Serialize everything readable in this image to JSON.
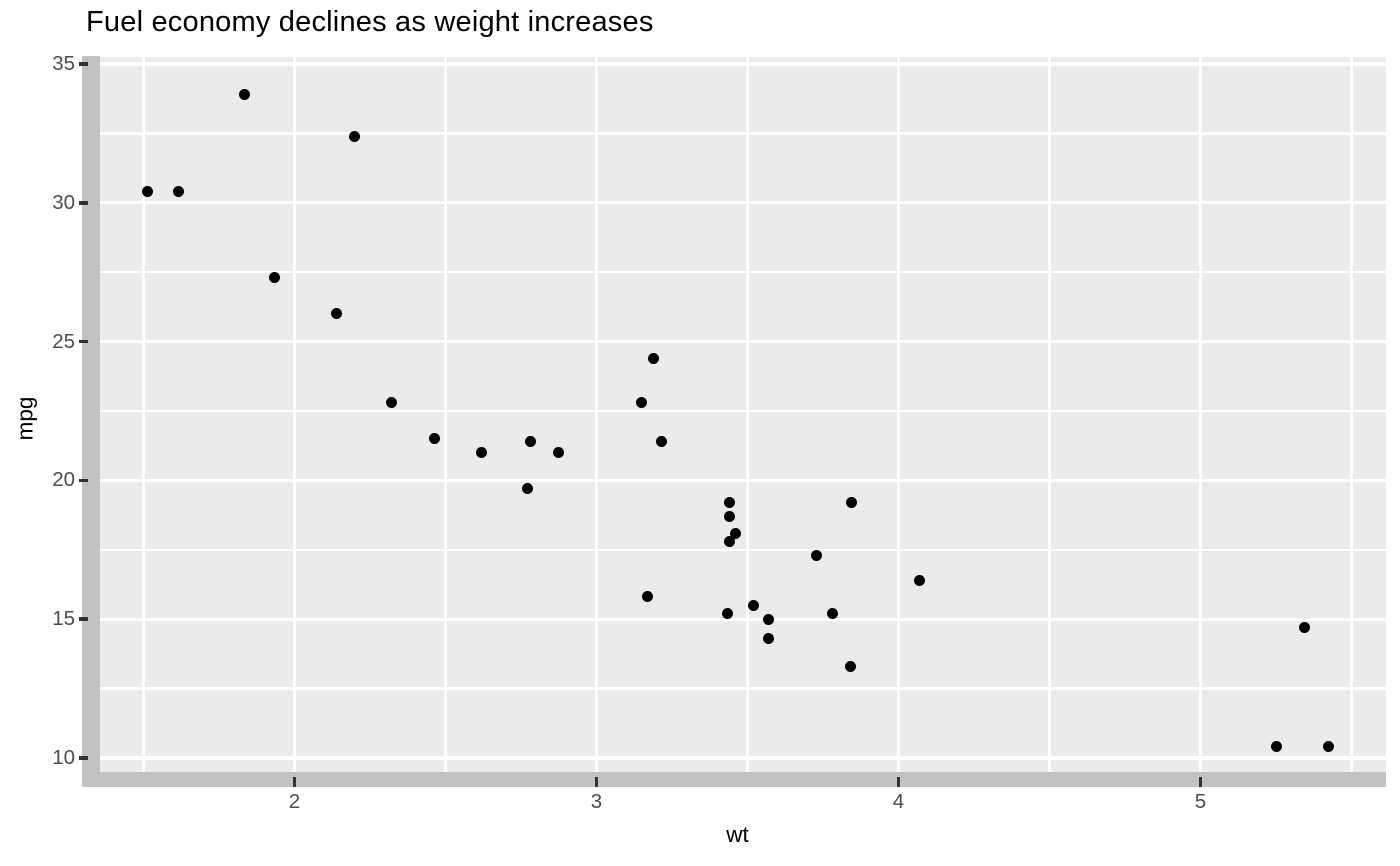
{
  "title": "Fuel economy declines as weight increases",
  "chart_data": {
    "type": "scatter",
    "title": "Fuel economy declines as weight increases",
    "xlabel": "wt",
    "ylabel": "mpg",
    "x_ticks": [
      2,
      3,
      4,
      5
    ],
    "y_ticks": [
      10,
      15,
      20,
      25,
      30,
      35
    ],
    "x_minor_ticks": [
      1.5,
      2.5,
      3.5,
      4.5,
      5.5
    ],
    "y_minor_ticks": [
      12.5,
      17.5,
      22.5,
      27.5,
      32.5
    ],
    "xlim": [
      1.32,
      5.62
    ],
    "ylim": [
      9.23,
      35.08
    ],
    "grid": "white major and minor gridlines on gray panel",
    "legend_position": "none",
    "points": [
      [
        2.62,
        21.0
      ],
      [
        2.875,
        21.0
      ],
      [
        2.32,
        22.8
      ],
      [
        3.215,
        21.4
      ],
      [
        3.44,
        18.7
      ],
      [
        3.46,
        18.1
      ],
      [
        3.57,
        14.3
      ],
      [
        3.19,
        24.4
      ],
      [
        3.15,
        22.8
      ],
      [
        3.44,
        19.2
      ],
      [
        3.44,
        17.8
      ],
      [
        4.07,
        16.4
      ],
      [
        3.73,
        17.3
      ],
      [
        3.78,
        15.2
      ],
      [
        5.25,
        10.4
      ],
      [
        5.424,
        10.4
      ],
      [
        5.345,
        14.7
      ],
      [
        2.2,
        32.4
      ],
      [
        1.615,
        30.4
      ],
      [
        1.835,
        33.9
      ],
      [
        2.465,
        21.5
      ],
      [
        3.52,
        15.5
      ],
      [
        3.435,
        15.2
      ],
      [
        3.84,
        13.3
      ],
      [
        3.845,
        19.2
      ],
      [
        1.935,
        27.3
      ],
      [
        2.14,
        26.0
      ],
      [
        1.513,
        30.4
      ],
      [
        3.17,
        15.8
      ],
      [
        2.77,
        19.7
      ],
      [
        3.57,
        15.0
      ],
      [
        2.78,
        21.4
      ]
    ],
    "colors": {
      "background": "#ffffff",
      "panel_background": "#ebebeb",
      "gridline": "#ffffff",
      "border_strip": "#c2c2c2",
      "point": "#000000",
      "tick_mark": "#333333",
      "tick_label": "#4d4d4d",
      "title": "#000000",
      "axis_title": "#000000"
    }
  }
}
